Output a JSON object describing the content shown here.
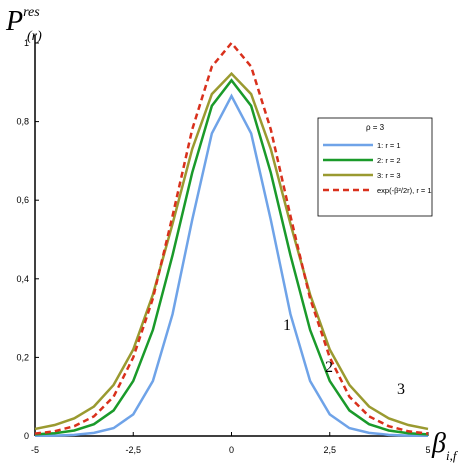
{
  "chart_data": {
    "type": "line",
    "x_label": {
      "main": "β",
      "sub": "i,f"
    },
    "y_label": {
      "main": "P",
      "sub": "(r)",
      "sup": "res"
    },
    "x": [
      -5,
      -4.5,
      -4,
      -3.5,
      -3,
      -2.5,
      -2,
      -1.5,
      -1,
      -0.5,
      0,
      0.5,
      1,
      1.5,
      2,
      2.5,
      3,
      3.5,
      4,
      4.5,
      5
    ],
    "xlim": [
      -5,
      5
    ],
    "ylim": [
      0,
      1
    ],
    "xticks": [
      -5,
      {
        "value": -2.5,
        "label": "-2,5"
      },
      0,
      {
        "value": 2.5,
        "label": "2,5"
      },
      5
    ],
    "yticks": [
      0,
      {
        "value": 0.2,
        "label": "0,2"
      },
      {
        "value": 0.4,
        "label": "0,4"
      },
      {
        "value": 0.6,
        "label": "0,6"
      },
      {
        "value": 0.8,
        "label": "0,8"
      },
      1
    ],
    "legend_title": "ρ = 3",
    "legend_position": "right",
    "series": [
      {
        "name": "1: r = 1",
        "color": "#6fa3e8",
        "dashed": false,
        "values": [
          0.0005,
          0.001,
          0.003,
          0.008,
          0.02,
          0.055,
          0.14,
          0.31,
          0.55,
          0.77,
          0.865,
          0.77,
          0.55,
          0.31,
          0.14,
          0.055,
          0.02,
          0.008,
          0.003,
          0.001,
          0.0005
        ]
      },
      {
        "name": "2: r = 2",
        "color": "#1a9a2a",
        "dashed": false,
        "values": [
          0.004,
          0.007,
          0.014,
          0.03,
          0.065,
          0.14,
          0.27,
          0.46,
          0.67,
          0.84,
          0.905,
          0.84,
          0.67,
          0.46,
          0.27,
          0.14,
          0.065,
          0.03,
          0.014,
          0.007,
          0.004
        ]
      },
      {
        "name": "3: r = 3",
        "color": "#9a9a30",
        "dashed": false,
        "values": [
          0.018,
          0.028,
          0.045,
          0.075,
          0.13,
          0.22,
          0.36,
          0.54,
          0.73,
          0.87,
          0.922,
          0.87,
          0.73,
          0.54,
          0.36,
          0.22,
          0.13,
          0.075,
          0.045,
          0.028,
          0.018
        ]
      },
      {
        "name": "exp(-β²/2r), r = 1",
        "color": "#d9301c",
        "dashed": true,
        "values": [
          0.006,
          0.012,
          0.025,
          0.05,
          0.1,
          0.2,
          0.35,
          0.56,
          0.78,
          0.94,
          1.0,
          0.94,
          0.78,
          0.56,
          0.35,
          0.2,
          0.1,
          0.05,
          0.025,
          0.012,
          0.006
        ]
      }
    ],
    "annotations": [
      "1",
      "2",
      "3"
    ]
  }
}
